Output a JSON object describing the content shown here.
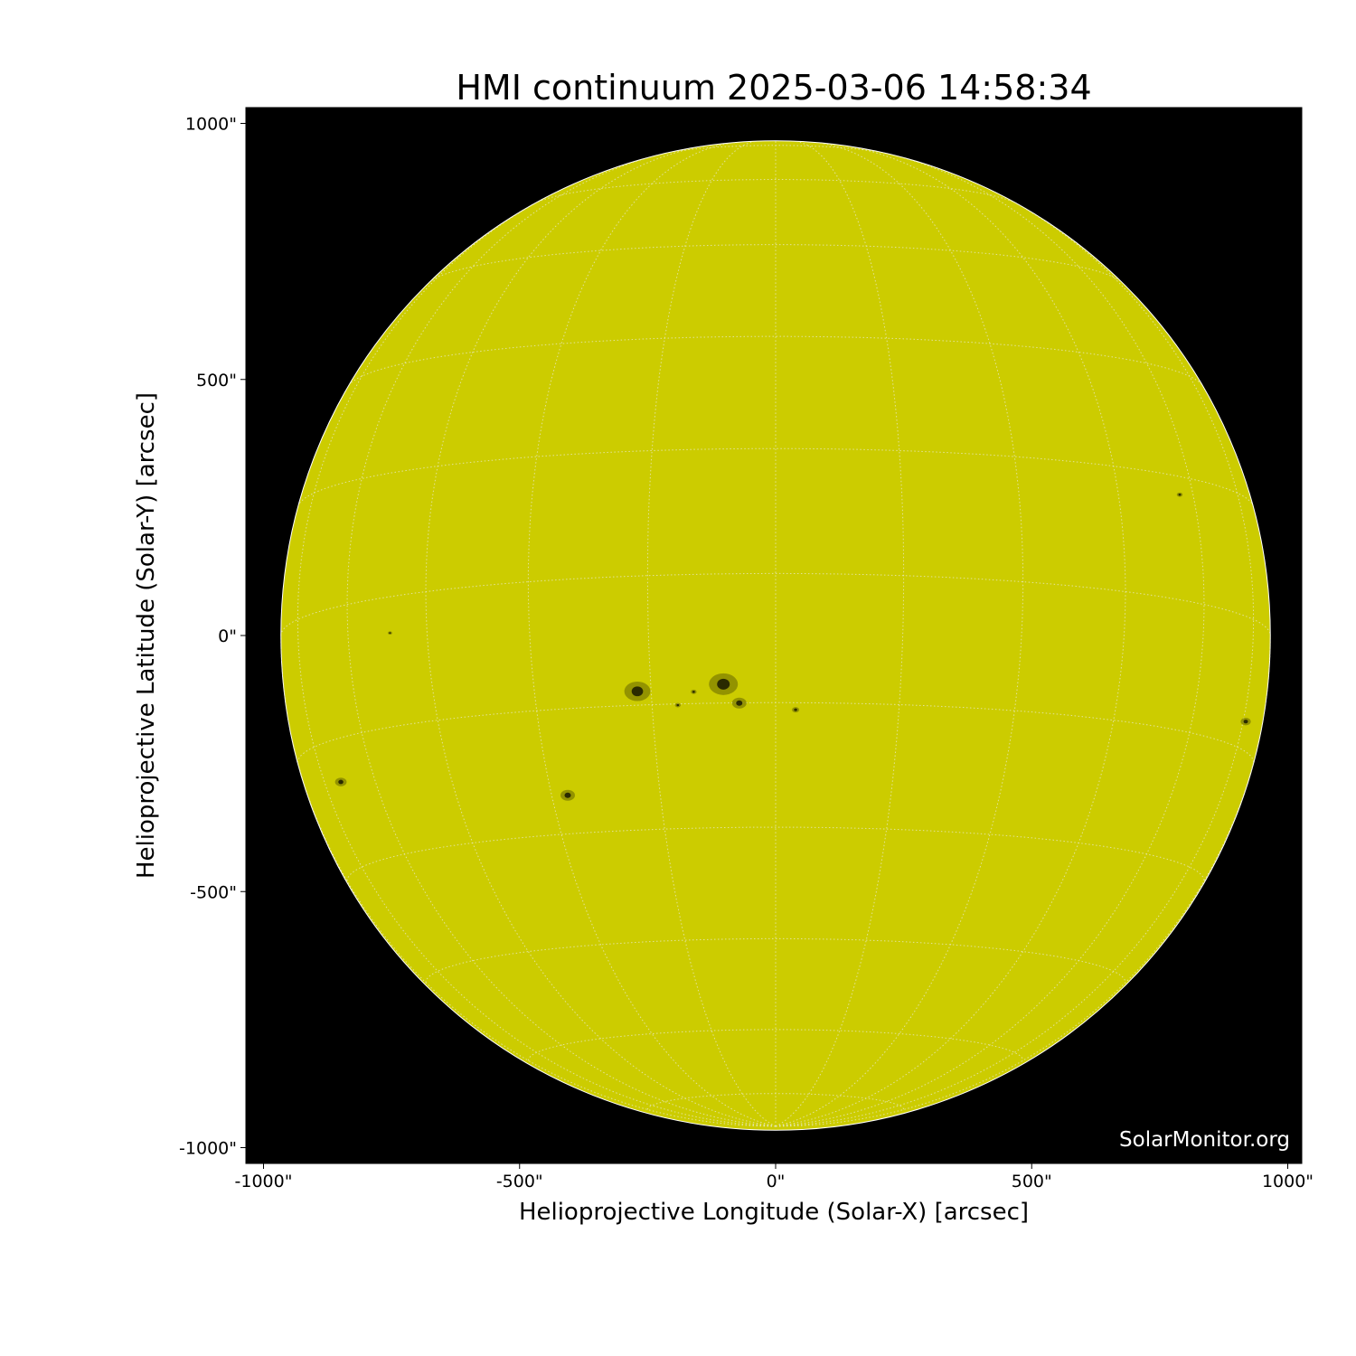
{
  "chart_data": {
    "type": "heatmap",
    "title": "HMI continuum 2025-03-06 14:58:34",
    "xlabel": "Helioprojective Longitude (Solar-X) [arcsec]",
    "ylabel": "Helioprojective Latitude (Solar-Y) [arcsec]",
    "xlim": [
      -1030,
      1030
    ],
    "ylim": [
      -1030,
      1030
    ],
    "x_ticks": [
      -1000,
      -500,
      0,
      500,
      1000
    ],
    "x_tick_labels": [
      "-1000\"",
      "-500\"",
      "0\"",
      "500\"",
      "1000\""
    ],
    "y_ticks": [
      1000,
      500,
      0,
      -500,
      -1000
    ],
    "y_tick_labels": [
      "1000\"",
      "500\"",
      "0\"",
      "-500\"",
      "-1000\""
    ],
    "solar_radius_arcsec": 966,
    "grid": "heliographic lon/lat, 15 degree spacing, dotted",
    "colors": {
      "disk": "#cccc00",
      "background": "#000000",
      "sunspot": "#2a2a00",
      "grid": "#e8e8c0"
    },
    "sunspots": [
      {
        "x": -270,
        "y": -109,
        "size": 18
      },
      {
        "x": -102,
        "y": -95,
        "size": 20
      },
      {
        "x": -71,
        "y": -132,
        "size": 10
      },
      {
        "x": -191,
        "y": -136,
        "size": 4
      },
      {
        "x": -160,
        "y": -110,
        "size": 4
      },
      {
        "x": 39,
        "y": -145,
        "size": 5
      },
      {
        "x": -406,
        "y": -312,
        "size": 10
      },
      {
        "x": -849,
        "y": -286,
        "size": 8
      },
      {
        "x": 918,
        "y": -168,
        "size": 7
      },
      {
        "x": 789,
        "y": 275,
        "size": 4
      },
      {
        "x": -753,
        "y": 5,
        "size": 3
      }
    ]
  },
  "watermark": "SolarMonitor.org"
}
